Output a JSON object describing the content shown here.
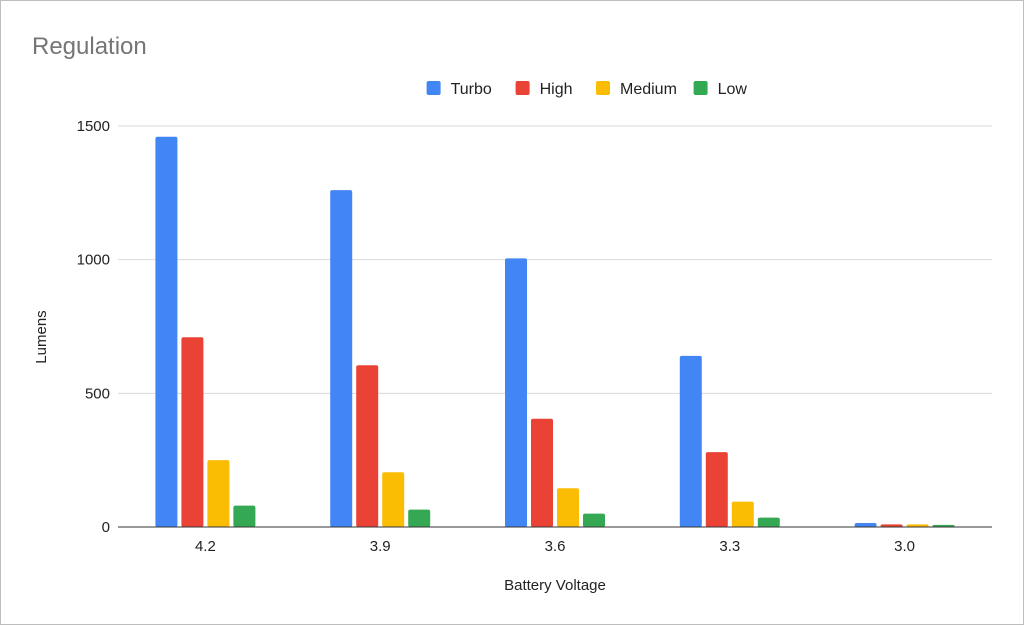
{
  "chart_data": {
    "type": "bar",
    "title": "Regulation",
    "xlabel": "Battery Voltage",
    "ylabel": "Lumens",
    "categories": [
      "4.2",
      "3.9",
      "3.6",
      "3.3",
      "3.0"
    ],
    "ylim": [
      0,
      1500
    ],
    "yticks": [
      0,
      500,
      1000,
      1500
    ],
    "grid": true,
    "legend_position": "top",
    "series": [
      {
        "name": "Turbo",
        "color": "#4285f4",
        "values": [
          1460,
          1260,
          1005,
          640,
          15
        ]
      },
      {
        "name": "High",
        "color": "#ea4335",
        "values": [
          710,
          605,
          405,
          280,
          10
        ]
      },
      {
        "name": "Medium",
        "color": "#fbbc04",
        "values": [
          250,
          205,
          145,
          95,
          10
        ]
      },
      {
        "name": "Low",
        "color": "#34a853",
        "values": [
          80,
          65,
          50,
          35,
          8
        ]
      }
    ]
  }
}
